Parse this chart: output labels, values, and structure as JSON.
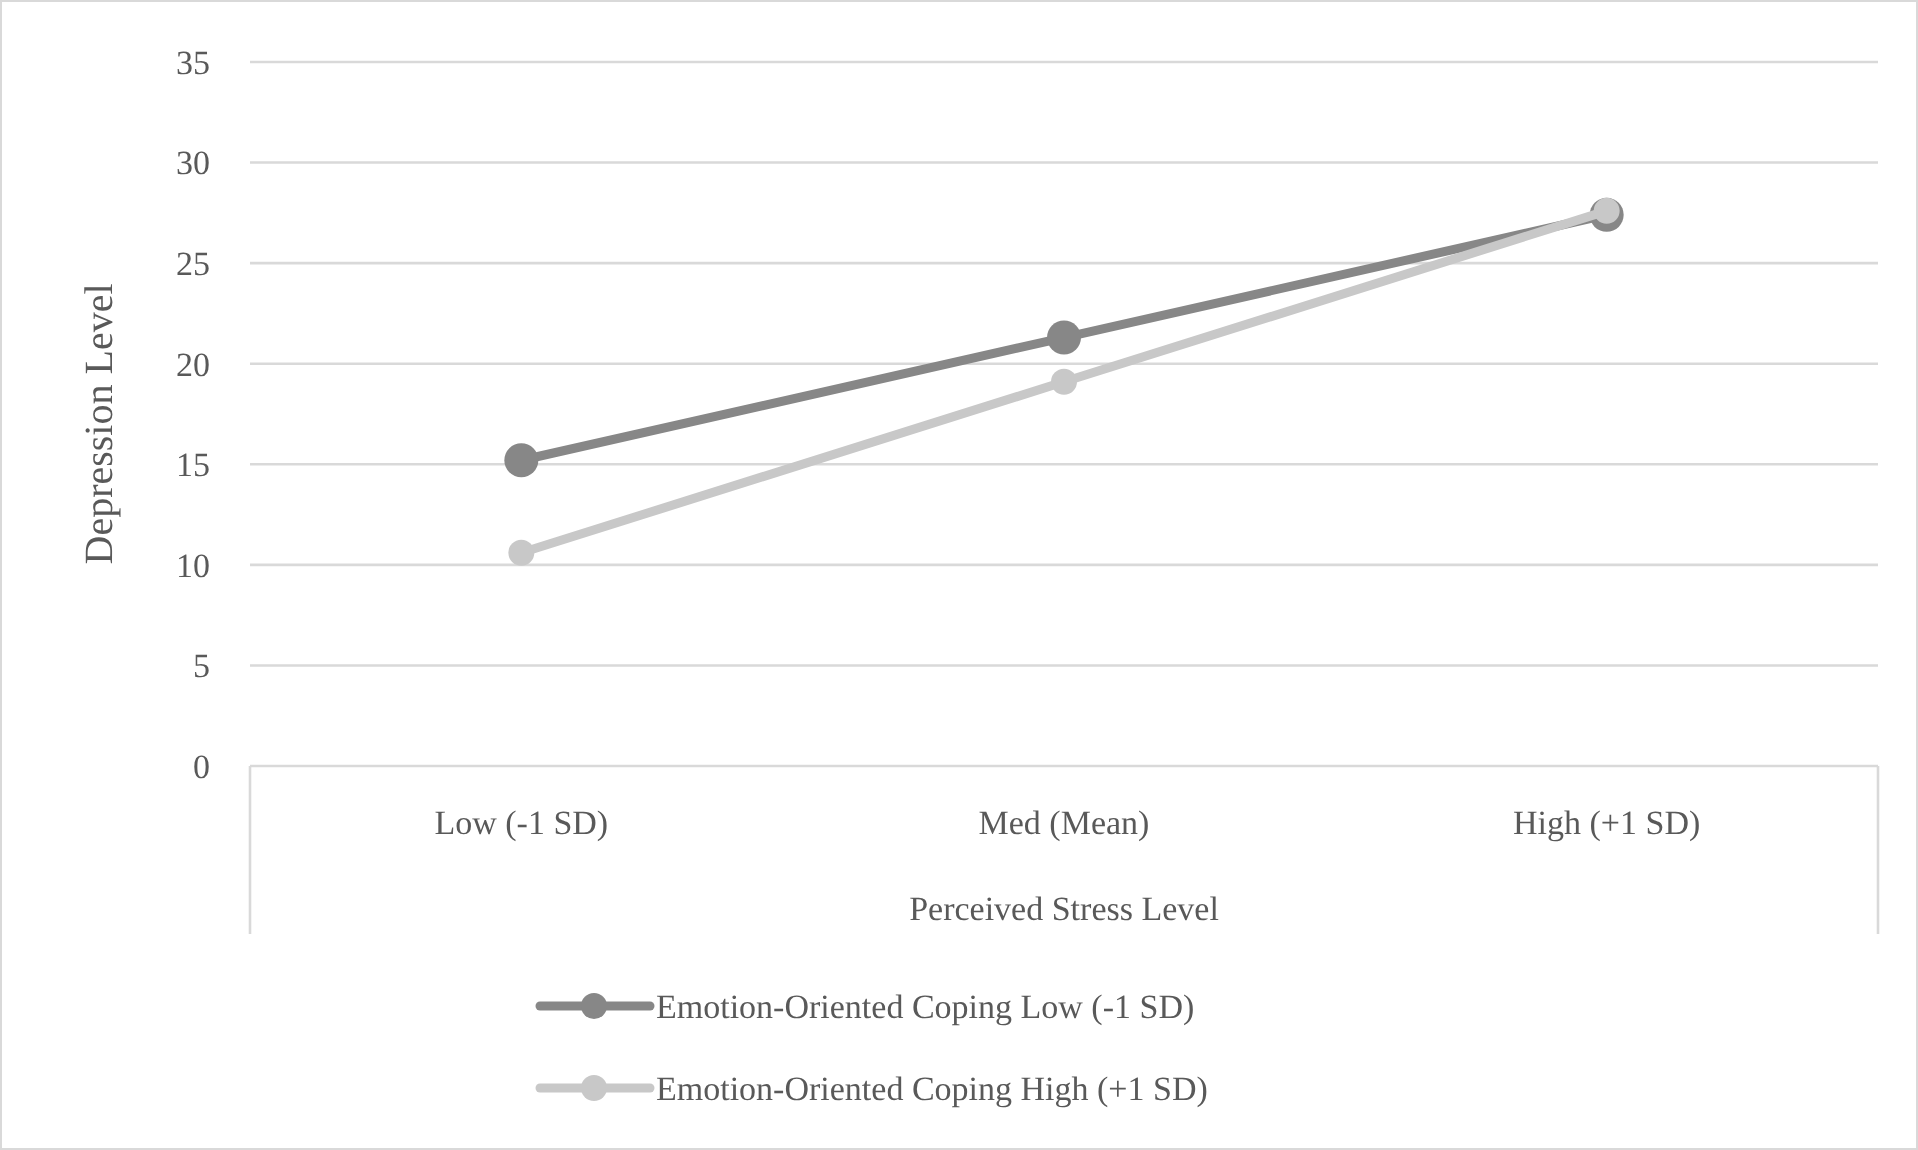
{
  "chart_data": {
    "type": "line",
    "xlabel": "Perceived Stress Level",
    "ylabel": "Depression Level",
    "categories": [
      "Low (-1 SD)",
      "Med (Mean)",
      "High (+1 SD)"
    ],
    "series": [
      {
        "name": "Emotion-Oriented Coping Low (-1 SD)",
        "color": "#878787",
        "values": [
          15.2,
          21.3,
          27.4
        ]
      },
      {
        "name": "Emotion-Oriented Coping High (+1 SD)",
        "color": "#c8c8c8",
        "values": [
          10.6,
          19.1,
          27.6
        ]
      }
    ],
    "ylim": [
      0,
      35
    ],
    "yticks": [
      0,
      5,
      10,
      15,
      20,
      25,
      30,
      35
    ],
    "grid": "y",
    "legend": "bottom",
    "marker": "circle",
    "line_style": "solid"
  }
}
